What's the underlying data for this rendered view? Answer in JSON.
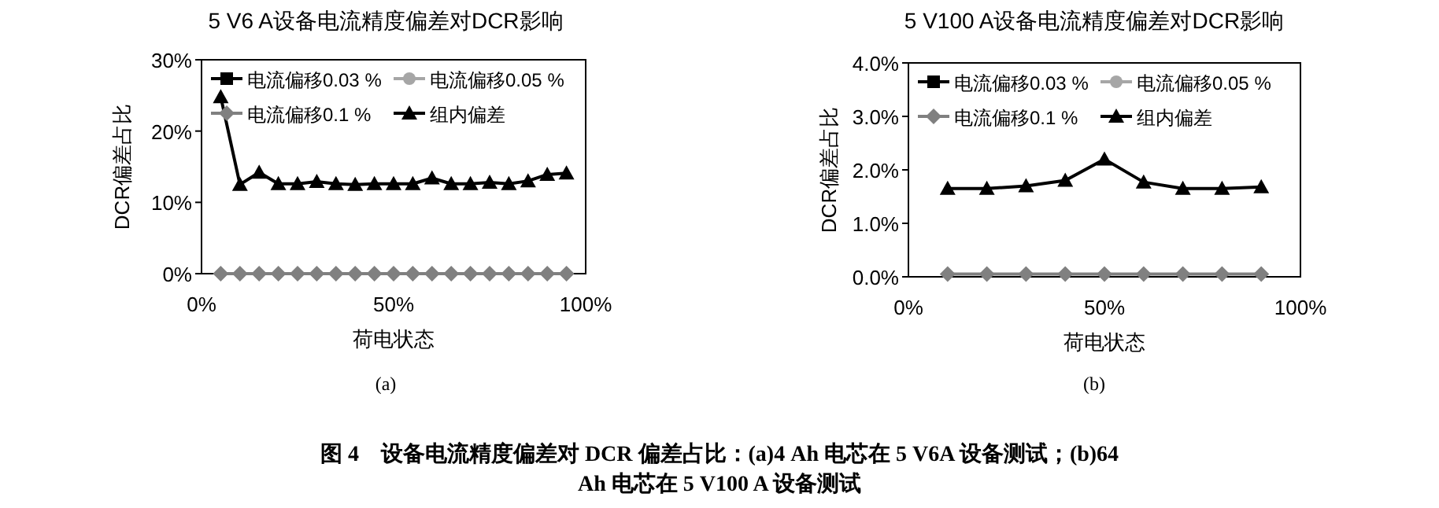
{
  "chart_data": [
    {
      "type": "line",
      "title": "5 V6 A设备电流精度偏差对DCR影响",
      "xlabel": "荷电状态",
      "ylabel": "DCR偏差占比",
      "x": [
        5,
        10,
        15,
        20,
        25,
        30,
        35,
        40,
        45,
        50,
        55,
        60,
        65,
        70,
        75,
        80,
        85,
        90,
        95
      ],
      "series": [
        {
          "name": "电流偏移0.03 %",
          "color": "#000000",
          "marker": "square",
          "values": [
            null,
            null,
            null,
            null,
            null,
            null,
            null,
            null,
            null,
            null,
            null,
            null,
            null,
            null,
            null,
            null,
            null,
            null,
            null
          ]
        },
        {
          "name": "电流偏移0.05 %",
          "color": "#a6a6a6",
          "marker": "circle",
          "values": [
            null,
            null,
            null,
            null,
            null,
            null,
            null,
            null,
            null,
            null,
            null,
            null,
            null,
            null,
            null,
            null,
            null,
            null,
            null
          ]
        },
        {
          "name": "电流偏移0.1 %",
          "color": "#808080",
          "marker": "diamond",
          "values": [
            0,
            0,
            0,
            0,
            0,
            0,
            0,
            0,
            0,
            0,
            0,
            0,
            0,
            0,
            0,
            0,
            0,
            0,
            0
          ]
        },
        {
          "name": "组内偏差",
          "color": "#000000",
          "marker": "triangle",
          "values": [
            24.8,
            12.5,
            14.2,
            12.6,
            12.6,
            12.9,
            12.6,
            12.5,
            12.6,
            12.6,
            12.6,
            13.4,
            12.6,
            12.6,
            12.8,
            12.6,
            13.0,
            13.9,
            14.1
          ]
        }
      ],
      "xlim": [
        0,
        100
      ],
      "xticks": [
        {
          "value": 0,
          "label": "0%"
        },
        {
          "value": 50,
          "label": "50%"
        },
        {
          "value": 100,
          "label": "100%"
        }
      ],
      "ylim": [
        0,
        30
      ],
      "yticks": [
        {
          "value": 0,
          "label": "0%"
        },
        {
          "value": 10,
          "label": "10%"
        },
        {
          "value": 20,
          "label": "20%"
        },
        {
          "value": 30,
          "label": "30%"
        }
      ],
      "legend": "top",
      "grid": false,
      "annotations": [
        "(a)"
      ]
    },
    {
      "type": "line",
      "title": "5 V100 A设备电流精度偏差对DCR影响",
      "xlabel": "荷电状态",
      "ylabel": "DCR偏差占比",
      "x": [
        10,
        20,
        30,
        40,
        50,
        60,
        70,
        80,
        90
      ],
      "series": [
        {
          "name": "电流偏移0.03 %",
          "color": "#000000",
          "marker": "square",
          "values": [
            null,
            null,
            null,
            null,
            null,
            null,
            null,
            null,
            null
          ]
        },
        {
          "name": "电流偏移0.05 %",
          "color": "#a6a6a6",
          "marker": "circle",
          "values": [
            null,
            null,
            null,
            null,
            null,
            null,
            null,
            null,
            null
          ]
        },
        {
          "name": "电流偏移0.1 %",
          "color": "#808080",
          "marker": "diamond",
          "values": [
            0.05,
            0.05,
            0.05,
            0.05,
            0.05,
            0.05,
            0.05,
            0.05,
            0.05
          ]
        },
        {
          "name": "组内偏差",
          "color": "#000000",
          "marker": "triangle",
          "values": [
            1.65,
            1.65,
            1.7,
            1.8,
            2.2,
            1.77,
            1.65,
            1.65,
            1.68
          ]
        }
      ],
      "xlim": [
        0,
        100
      ],
      "xticks": [
        {
          "value": 0,
          "label": "0%"
        },
        {
          "value": 50,
          "label": "50%"
        },
        {
          "value": 100,
          "label": "100%"
        }
      ],
      "ylim": [
        0,
        4
      ],
      "yticks": [
        {
          "value": 0,
          "label": "0.0%"
        },
        {
          "value": 1,
          "label": "1.0%"
        },
        {
          "value": 2,
          "label": "2.0%"
        },
        {
          "value": 3,
          "label": "3.0%"
        },
        {
          "value": 4,
          "label": "4.0%"
        }
      ],
      "legend": "top",
      "grid": false,
      "annotations": [
        "(b)",
        "图 4　设备电流精度偏差对 DCR 偏差占比：(a)4 Ah 电芯在 5 V6A 设备测试；(b)64 Ah 电芯在 5 V100 A 设备测试"
      ]
    }
  ]
}
